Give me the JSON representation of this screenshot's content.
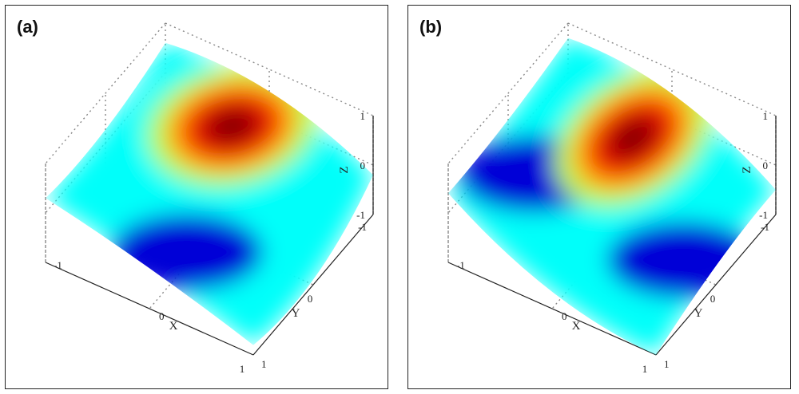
{
  "colors": {
    "colormap": [
      "#00008f",
      "#0000ff",
      "#0080ff",
      "#00ffff",
      "#80ff80",
      "#ffff00",
      "#ff8000",
      "#ff0000",
      "#800000"
    ],
    "frame": "#222222",
    "grid": "#888888"
  },
  "chart_data": [
    {
      "type": "surface",
      "label": "(a)",
      "xlabel": "X",
      "ylabel": "Y",
      "zlabel": "Z",
      "xticks": [
        "-1",
        "0",
        "1"
      ],
      "yticks": [
        "-1",
        "0",
        "1"
      ],
      "zticks": [
        "-1",
        "0",
        "1"
      ],
      "xlim": [
        -1,
        1
      ],
      "ylim": [
        -1,
        1
      ],
      "zlim": [
        -1,
        1
      ],
      "colormap": "jet",
      "grid": true,
      "peak": {
        "x": -0.35,
        "y": 0.0,
        "z": 1.0
      },
      "trough": {
        "x": 0.55,
        "y": 0.1,
        "z": -1.0
      }
    },
    {
      "type": "surface",
      "label": "(b)",
      "xlabel": "X",
      "ylabel": "Y",
      "zlabel": "Z",
      "xticks": [
        "-1",
        "0",
        "1"
      ],
      "yticks": [
        "-1",
        "0",
        "1"
      ],
      "zticks": [
        "-1",
        "0",
        "1"
      ],
      "xlim": [
        -1,
        1
      ],
      "ylim": [
        -1,
        1
      ],
      "zlim": [
        -1,
        1
      ],
      "colormap": "jet",
      "grid": true,
      "peak": {
        "x": -0.2,
        "y": 0.05,
        "z": 1.0
      },
      "troughs": [
        {
          "x": 0.0,
          "y": -0.75,
          "z": -1.0
        },
        {
          "x": 0.2,
          "y": 0.8,
          "z": -1.0
        }
      ]
    }
  ]
}
